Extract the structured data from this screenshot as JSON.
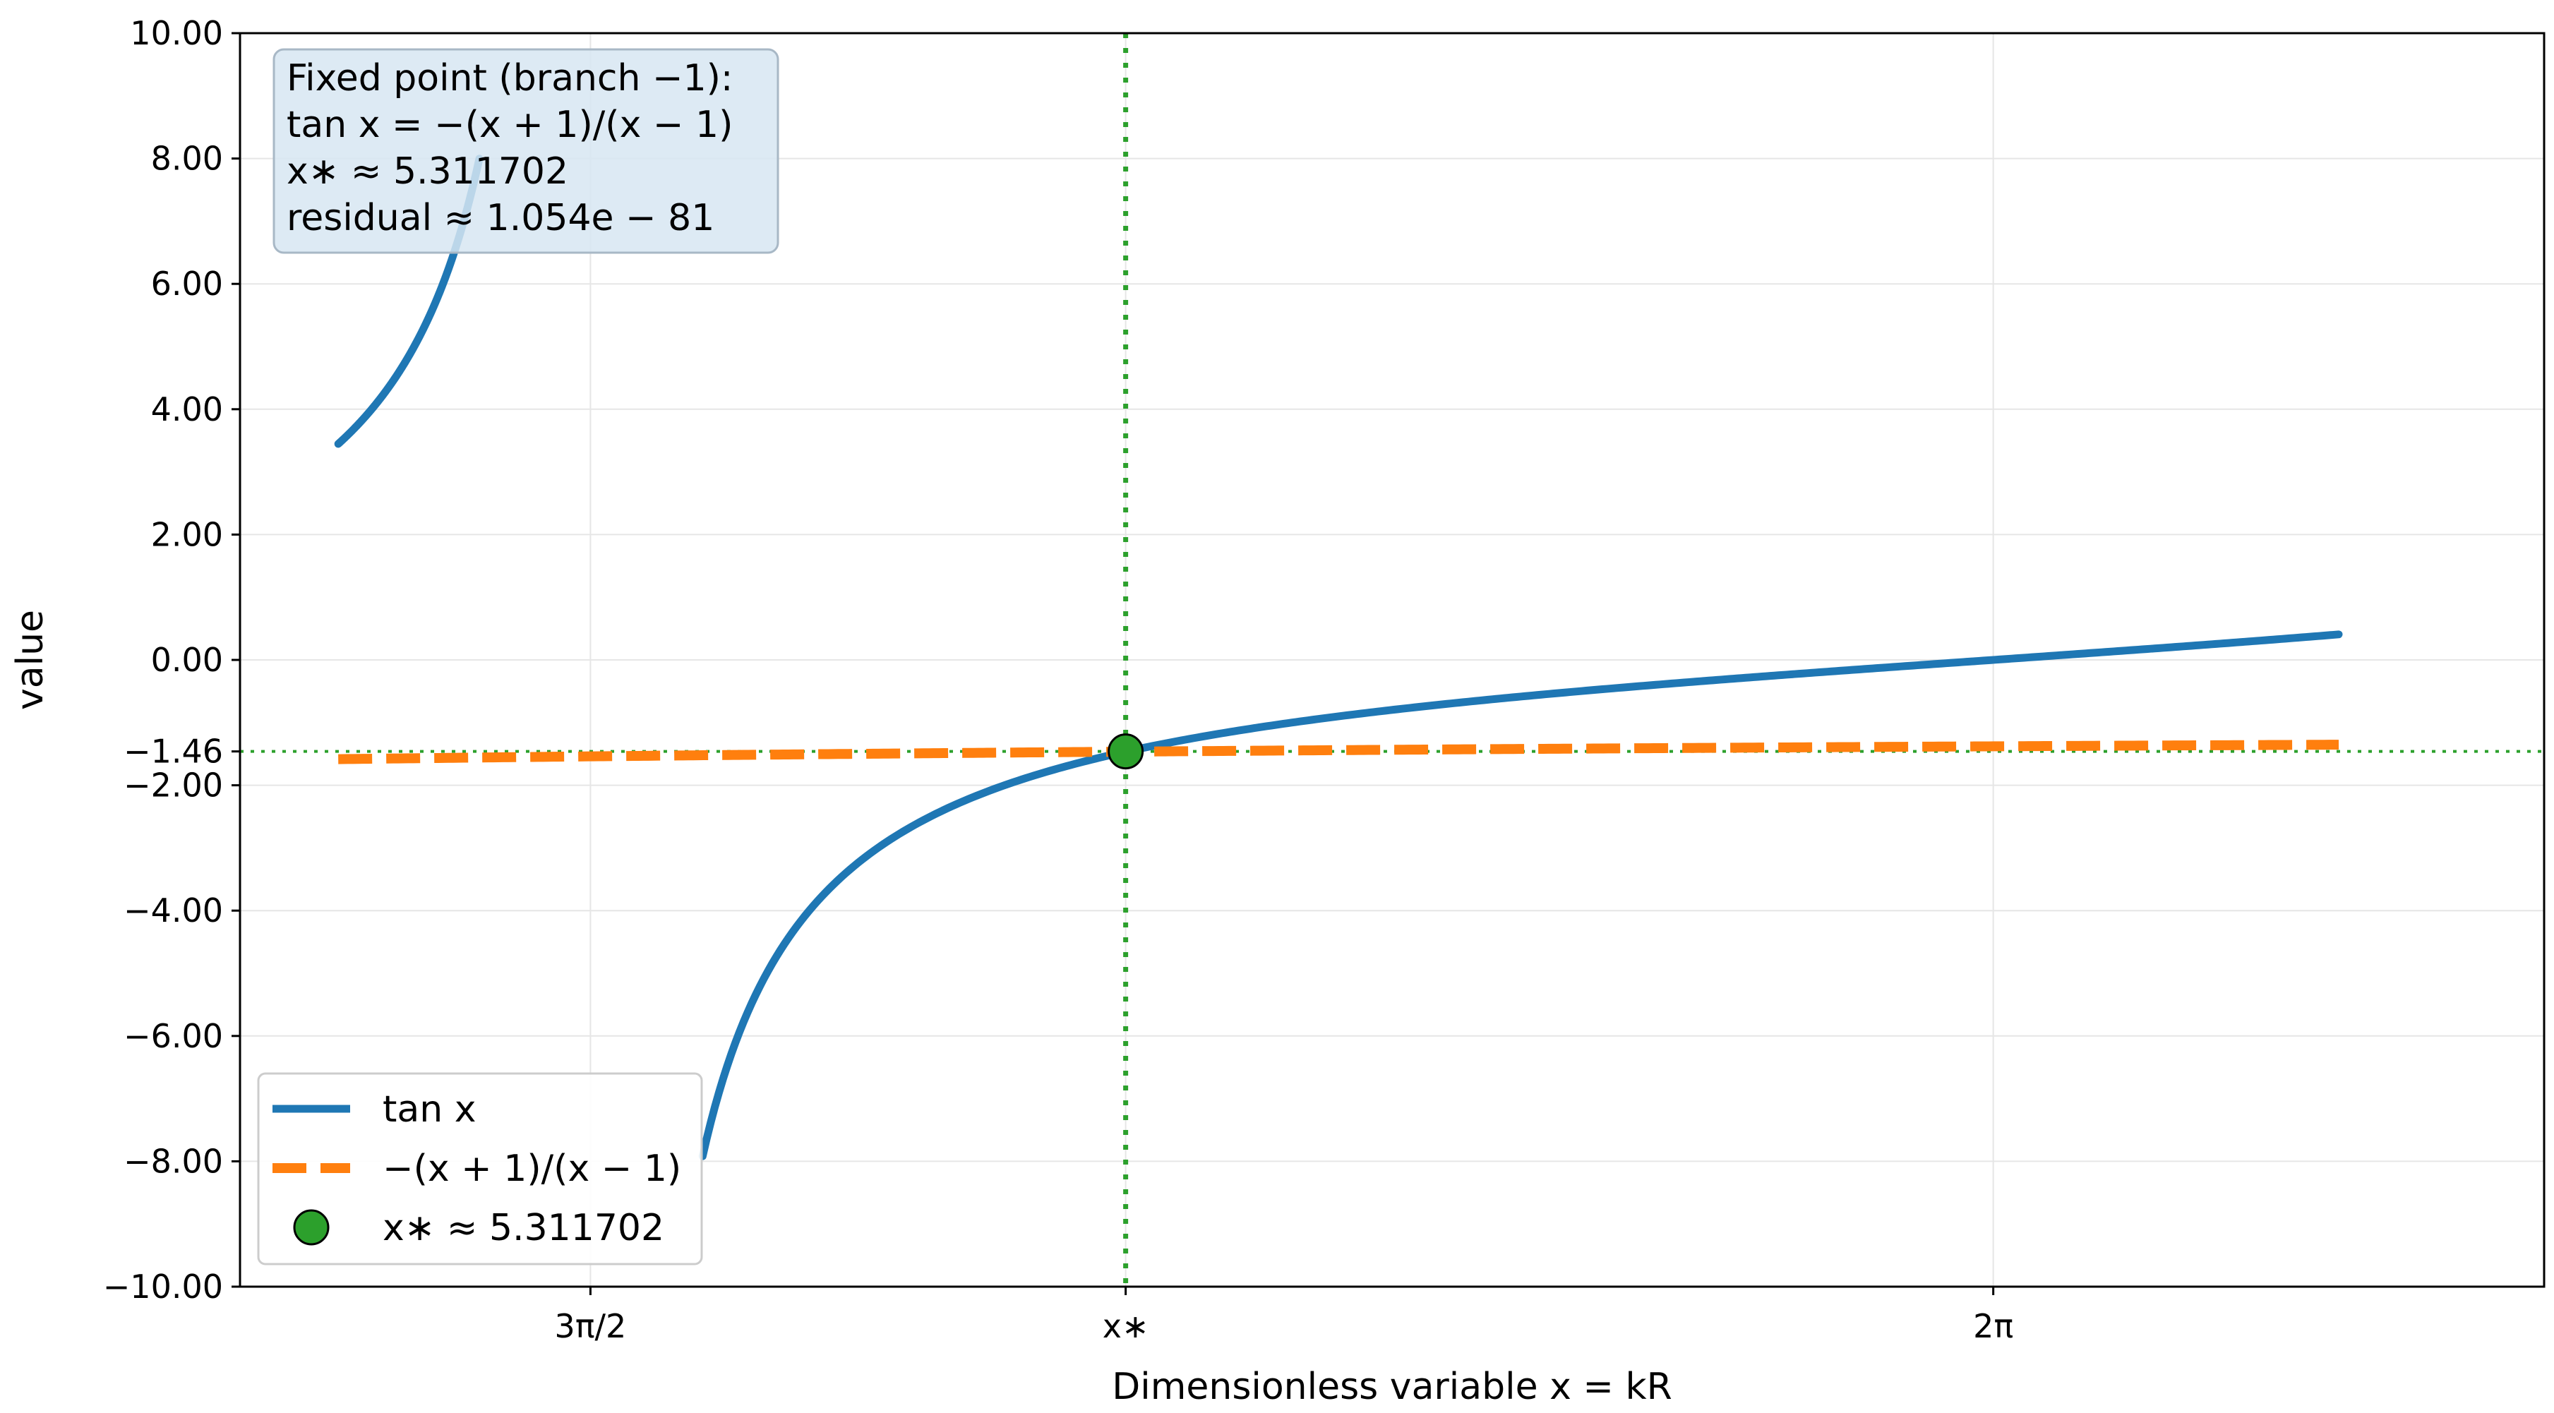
{
  "chart_data": {
    "type": "line",
    "xlabel": "Dimensionless variable x = kR",
    "ylabel": "value",
    "xlim": [
      4.32,
      6.9
    ],
    "ylim": [
      -10,
      10
    ],
    "grid": true,
    "y_ticks": [
      "10.00",
      "8.00",
      "6.00",
      "4.00",
      "2.00",
      "0.00",
      "−1.46",
      "−2.00",
      "−4.00",
      "−6.00",
      "−8.00",
      "−10.00"
    ],
    "y_tick_values": [
      10,
      8,
      6,
      4,
      2,
      0,
      -1.46,
      -2,
      -4,
      -6,
      -8,
      -10
    ],
    "x_ticks": [
      {
        "label": "3π/2",
        "value": 4.712389
      },
      {
        "label": "x∗",
        "value": 5.311702
      },
      {
        "label": "2π",
        "value": 6.283185
      }
    ],
    "series": [
      {
        "name": "tan x",
        "function": "tan",
        "color": "#1f77b4",
        "style": "solid",
        "segments": [
          [
            4.43,
            4.588
          ],
          [
            4.838,
            6.67
          ]
        ]
      },
      {
        "name": "−(x + 1)/(x − 1)",
        "function": "-(x+1)/(x-1)",
        "color": "#ff7f0e",
        "style": "dashed",
        "range": [
          4.43,
          6.67
        ]
      }
    ],
    "fixed_point": {
      "label": "x∗ ≈ 5.311702",
      "x": 5.311702,
      "y": -1.46,
      "color": "#2ca02c"
    },
    "reference_lines": {
      "vertical_x": 5.311702,
      "horizontal_y": -1.46,
      "color": "#2ca02c"
    },
    "annotation": {
      "lines": [
        "Fixed point (branch −1):",
        "tan x = −(x + 1)/(x − 1)",
        "x∗ ≈ 5.311702",
        "residual  ≈ 1.054e − 81"
      ],
      "background": "#d7e6f2"
    },
    "legend": {
      "placement": "lower-left",
      "items": [
        {
          "label": "tan x",
          "marker": "line",
          "color": "#1f77b4"
        },
        {
          "label": "−(x + 1)/(x − 1)",
          "marker": "dashed",
          "color": "#ff7f0e"
        },
        {
          "label": "x∗ ≈ 5.311702",
          "marker": "dot",
          "color": "#2ca02c"
        }
      ]
    }
  }
}
